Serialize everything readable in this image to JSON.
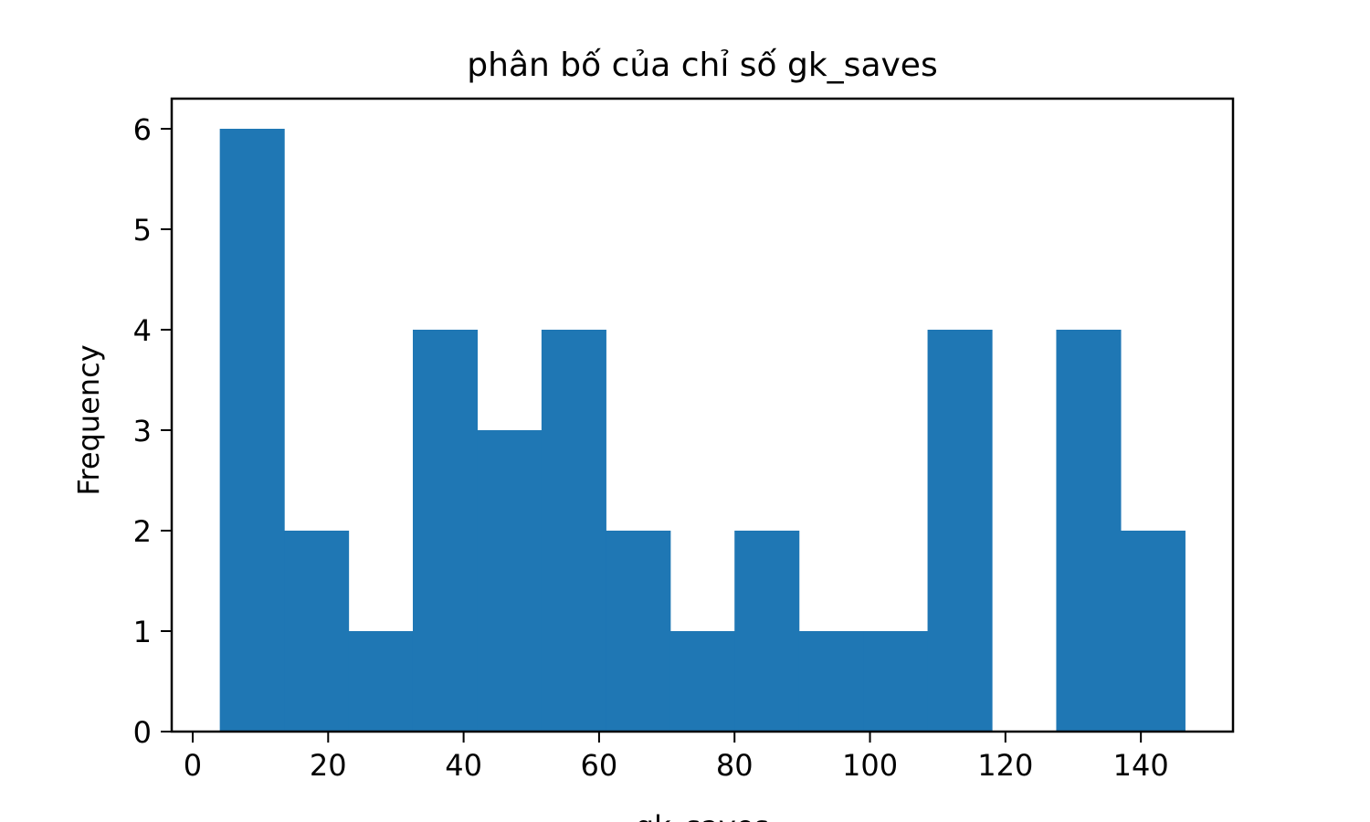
{
  "chart_data": {
    "type": "bar",
    "title": "phân bố của chỉ số gk_saves",
    "xlabel": "gk_saves",
    "ylabel": "Frequency",
    "bins": [
      {
        "x0": 4.0,
        "x1": 13.5,
        "count": 6
      },
      {
        "x0": 13.5,
        "x1": 23.0,
        "count": 2
      },
      {
        "x0": 23.0,
        "x1": 32.5,
        "count": 1
      },
      {
        "x0": 32.5,
        "x1": 42.0,
        "count": 4
      },
      {
        "x0": 42.0,
        "x1": 51.5,
        "count": 3
      },
      {
        "x0": 51.5,
        "x1": 61.0,
        "count": 4
      },
      {
        "x0": 61.0,
        "x1": 70.5,
        "count": 2
      },
      {
        "x0": 70.5,
        "x1": 80.0,
        "count": 1
      },
      {
        "x0": 80.0,
        "x1": 89.5,
        "count": 2
      },
      {
        "x0": 89.5,
        "x1": 99.0,
        "count": 1
      },
      {
        "x0": 99.0,
        "x1": 108.5,
        "count": 1
      },
      {
        "x0": 108.5,
        "x1": 118.0,
        "count": 4
      },
      {
        "x0": 118.0,
        "x1": 127.5,
        "count": 0
      },
      {
        "x0": 127.5,
        "x1": 137.0,
        "count": 4
      },
      {
        "x0": 137.0,
        "x1": 146.5,
        "count": 2
      }
    ],
    "xticks": [
      0,
      20,
      40,
      60,
      80,
      100,
      120,
      140
    ],
    "yticks": [
      0,
      1,
      2,
      3,
      4,
      5,
      6
    ],
    "xlim": [
      -3.1,
      153.6
    ],
    "ylim": [
      0,
      6.3
    ],
    "grid": false,
    "bar_color": "#1f77b4"
  }
}
